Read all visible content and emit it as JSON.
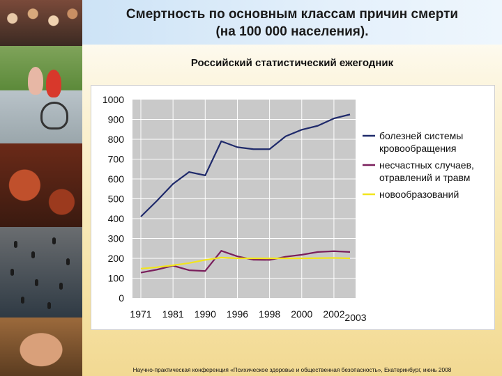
{
  "header": {
    "title_line1": "Смертность по основным классам причин смерти",
    "title_line2": "(на 100 000 населения)."
  },
  "source_label": "Российский статистический ежегодник",
  "footer": "Научно-практическая конференция «Психическое здоровье и общественная безопасность», Екатеринбург, июнь 2008",
  "chart_data": {
    "type": "line",
    "x": [
      "1971",
      "1981",
      "1990",
      "1996",
      "1998",
      "2000",
      "2002",
      "2003"
    ],
    "x_ticks": [
      "1971",
      "1981",
      "1990",
      "1996",
      "1998",
      "2000",
      "2002",
      "2003"
    ],
    "ylim": [
      0,
      1000
    ],
    "y_ticks": [
      "0",
      "100",
      "200",
      "300",
      "400",
      "500",
      "600",
      "700",
      "800",
      "900",
      "1000"
    ],
    "grid": true,
    "legend_position": "right",
    "series": [
      {
        "name": "болезней системы кровообращения",
        "legend_lines": [
          "болезней системы",
          "кровообращения"
        ],
        "color": "#1f2a6b",
        "points": [
          [
            0,
            410
          ],
          [
            0.5,
            490
          ],
          [
            1,
            575
          ],
          [
            1.5,
            635
          ],
          [
            2,
            618
          ],
          [
            2.5,
            790
          ],
          [
            3,
            760
          ],
          [
            3.5,
            750
          ],
          [
            4,
            750
          ],
          [
            4.5,
            815
          ],
          [
            5,
            848
          ],
          [
            5.5,
            868
          ],
          [
            6,
            905
          ],
          [
            6.5,
            925
          ]
        ]
      },
      {
        "name": "несчастных случаев, отравлений и травм",
        "legend_lines": [
          "несчастных случаев,",
          "отравлений и травм"
        ],
        "color": "#7a1f5c",
        "points": [
          [
            0,
            128
          ],
          [
            0.5,
            143
          ],
          [
            1,
            163
          ],
          [
            1.5,
            140
          ],
          [
            2,
            136
          ],
          [
            2.5,
            238
          ],
          [
            3,
            210
          ],
          [
            3.5,
            193
          ],
          [
            4,
            192
          ],
          [
            4.5,
            208
          ],
          [
            5,
            218
          ],
          [
            5.5,
            232
          ],
          [
            6,
            236
          ],
          [
            6.5,
            232
          ]
        ]
      },
      {
        "name": "новообразований",
        "legend_lines": [
          "новообразований"
        ],
        "color": "#f2e51d",
        "points": [
          [
            0,
            148
          ],
          [
            0.5,
            155
          ],
          [
            1,
            165
          ],
          [
            1.5,
            176
          ],
          [
            2,
            192
          ],
          [
            2.5,
            204
          ],
          [
            3,
            200
          ],
          [
            3.5,
            200
          ],
          [
            4,
            200
          ],
          [
            4.5,
            200
          ],
          [
            5,
            200
          ],
          [
            5.5,
            201
          ],
          [
            6,
            202
          ],
          [
            6.5,
            200
          ]
        ]
      }
    ]
  }
}
